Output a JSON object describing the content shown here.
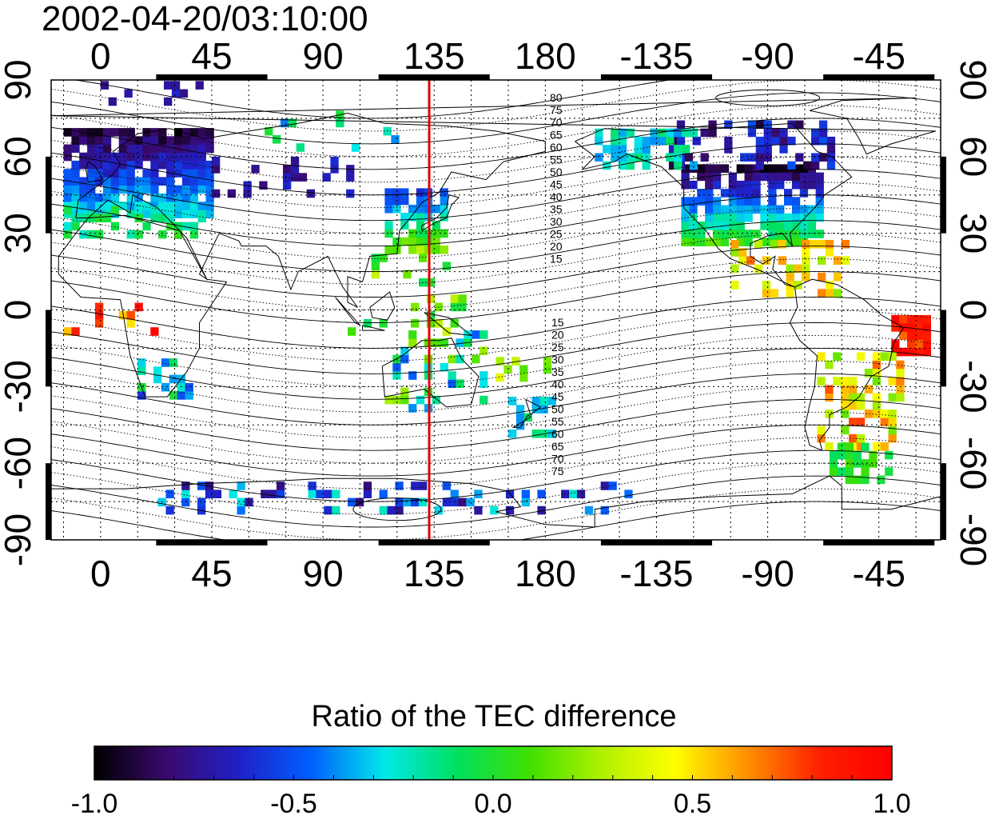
{
  "title": "2002-04-20/03:10:00",
  "map": {
    "top_lon_labels": [
      "0",
      "45",
      "90",
      "135",
      "180",
      "-135",
      "-90",
      "-45"
    ],
    "bottom_lon_labels": [
      "0",
      "45",
      "90",
      "135",
      "180",
      "-135",
      "-90",
      "-45"
    ],
    "left_lat_labels": [
      "90",
      "60",
      "30",
      "0",
      "-30",
      "-60",
      "-90"
    ],
    "right_lat_labels": [
      "90",
      "60",
      "30",
      "0",
      "-30",
      "-60",
      "-90"
    ],
    "lon_range": [
      -20,
      340
    ],
    "lat_range": [
      -90,
      90
    ],
    "grid": "dotted, every 15 degrees",
    "meridian_marker": {
      "lon": 133,
      "color": "#e00000"
    },
    "contour_labels_north": [
      "80",
      "75",
      "70",
      "65",
      "60",
      "55",
      "50",
      "45",
      "40",
      "35",
      "30",
      "25",
      "20",
      "15"
    ],
    "contour_labels_south": [
      "15",
      "20",
      "25",
      "30",
      "35",
      "40",
      "45",
      "50",
      "55",
      "60",
      "65",
      "70",
      "75"
    ]
  },
  "colorbar": {
    "title": "Ratio of the TEC difference",
    "min": -1.0,
    "max": 1.0,
    "tick_labels": [
      "-1.0",
      "-0.5",
      "0.0",
      "0.5",
      "1.0"
    ],
    "colormap": [
      "#000000",
      "#3a0a6e",
      "#2020c8",
      "#0060ff",
      "#00e8e8",
      "#00e060",
      "#40e000",
      "#b0f000",
      "#ffff00",
      "#ff9000",
      "#ff2000",
      "#ff0000"
    ]
  }
}
